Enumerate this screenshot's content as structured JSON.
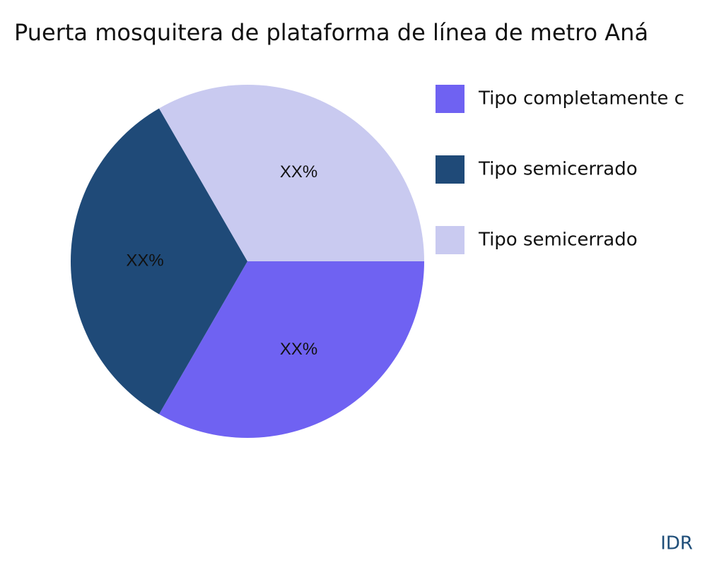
{
  "chart_data": {
    "type": "pie",
    "title": "Puerta mosquitera de plataforma de línea de metro Aná",
    "categories": [
      "Tipo completamente c",
      "Tipo semicerrado",
      "Tipo semicerrado"
    ],
    "values": [
      33.3,
      33.3,
      33.3
    ],
    "value_labels": [
      "XX%",
      "XX%",
      "XX%"
    ],
    "colors": [
      "#6f62f2",
      "#1f4a78",
      "#c9caf0"
    ],
    "legend": "right"
  },
  "watermark": "IDR"
}
